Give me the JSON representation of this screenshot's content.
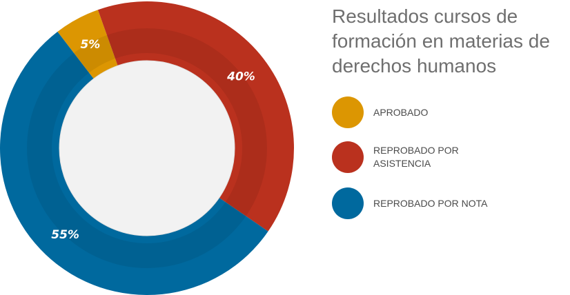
{
  "chart_data": {
    "type": "pie",
    "variant": "donut",
    "title": "Resultados cursos de formación en materias de derechos humanos",
    "slices": [
      {
        "label": "APROBADO",
        "value": 5,
        "display": "5%",
        "color": "#DC9602"
      },
      {
        "label": "REPROBADO POR ASISTENCIA",
        "value": 40,
        "display": "40%",
        "color": "#BA311E"
      },
      {
        "label": "REPROBADO POR NOTA",
        "value": 55,
        "display": "55%",
        "color": "#00699E"
      }
    ],
    "legend_placement": "right"
  }
}
